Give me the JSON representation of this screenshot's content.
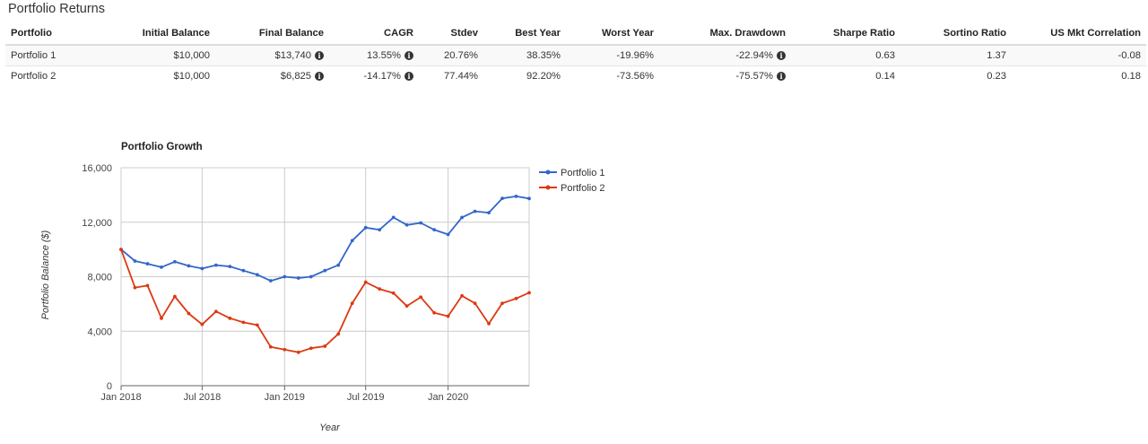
{
  "section_title": "Portfolio Returns",
  "table": {
    "headers": [
      "Portfolio",
      "Initial Balance",
      "Final Balance",
      "CAGR",
      "Stdev",
      "Best Year",
      "Worst Year",
      "Max. Drawdown",
      "Sharpe Ratio",
      "Sortino Ratio",
      "US Mkt Correlation"
    ],
    "rows": [
      {
        "portfolio": "Portfolio 1",
        "initial": "$10,000",
        "final": "$13,740",
        "cagr": "13.55%",
        "stdev": "20.76%",
        "best": "38.35%",
        "worst": "-19.96%",
        "drawdown": "-22.94%",
        "sharpe": "0.63",
        "sortino": "1.37",
        "corr": "-0.08"
      },
      {
        "portfolio": "Portfolio 2",
        "initial": "$10,000",
        "final": "$6,825",
        "cagr": "-14.17%",
        "stdev": "77.44%",
        "best": "92.20%",
        "worst": "-73.56%",
        "drawdown": "-75.57%",
        "sharpe": "0.14",
        "sortino": "0.23",
        "corr": "0.18"
      }
    ],
    "info_icon": "info-circle-icon"
  },
  "chart_data": {
    "type": "line",
    "title": "Portfolio Growth",
    "xlabel": "Year",
    "ylabel": "Portfolio Balance ($)",
    "ylim": [
      0,
      16000
    ],
    "yticks": [
      "0",
      "4,000",
      "8,000",
      "12,000",
      "16,000"
    ],
    "xticks": [
      "Jan 2018",
      "Jul 2018",
      "Jan 2019",
      "Jul 2019",
      "Jan 2020"
    ],
    "grid": true,
    "legend_position": "top-right",
    "x": [
      "2018-01",
      "2018-02",
      "2018-03",
      "2018-04",
      "2018-05",
      "2018-06",
      "2018-07",
      "2018-08",
      "2018-09",
      "2018-10",
      "2018-11",
      "2018-12",
      "2019-01",
      "2019-02",
      "2019-03",
      "2019-04",
      "2019-05",
      "2019-06",
      "2019-07",
      "2019-08",
      "2019-09",
      "2019-10",
      "2019-11",
      "2019-12",
      "2020-01",
      "2020-02",
      "2020-03",
      "2020-04",
      "2020-05",
      "2020-06",
      "2020-06-30"
    ],
    "series": [
      {
        "name": "Portfolio 1",
        "color": "#3366cc",
        "values": [
          10000,
          9150,
          8950,
          8700,
          9100,
          8800,
          8600,
          8850,
          8750,
          8450,
          8150,
          7700,
          8000,
          7900,
          8000,
          8450,
          8850,
          10650,
          11600,
          11450,
          12350,
          11800,
          11950,
          11450,
          11100,
          12350,
          12800,
          12700,
          13750,
          13900,
          13740
        ]
      },
      {
        "name": "Portfolio 2",
        "color": "#dc3912",
        "values": [
          10000,
          7200,
          7350,
          4950,
          6550,
          5300,
          4500,
          5450,
          4950,
          4650,
          4450,
          2850,
          2650,
          2450,
          2750,
          2900,
          3800,
          6050,
          7600,
          7100,
          6800,
          5850,
          6500,
          5350,
          5100,
          6600,
          6050,
          4550,
          6050,
          6400,
          6825
        ]
      }
    ]
  }
}
